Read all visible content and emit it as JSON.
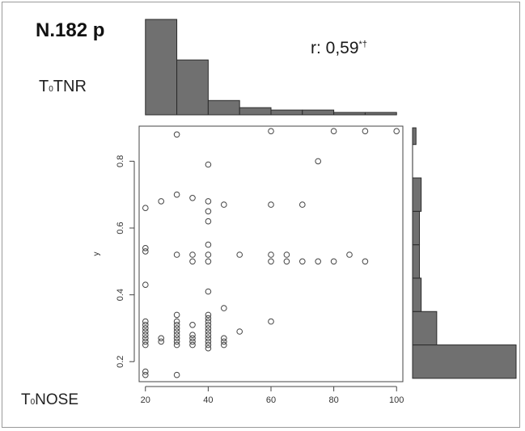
{
  "header": {
    "title": "N.182 p",
    "corr_main": "r: 0,59",
    "corr_sup": "*†",
    "label_top_prefix": "T",
    "label_top_sub": "0",
    "label_top_rest": "TNR",
    "label_bottom_prefix": "T",
    "label_bottom_sub": "0",
    "label_bottom_rest": "NOSE"
  },
  "colors": {
    "bar_fill": "#707070",
    "bar_stroke": "#2a2a2a",
    "point_stroke": "#444444",
    "axis": "#444444"
  },
  "chart_data": {
    "type": "scatter",
    "xlabel": "",
    "ylabel": "y",
    "xlim": [
      18,
      102
    ],
    "ylim": [
      0.14,
      0.905
    ],
    "x_ticks": [
      20,
      40,
      60,
      80,
      100
    ],
    "y_ticks": [
      0.2,
      0.4,
      0.6,
      0.8
    ],
    "y_tick_labels": [
      "0.2",
      "0.4",
      "0.6",
      "0.8"
    ],
    "grid": false,
    "points": [
      [
        20,
        0.17
      ],
      [
        20,
        0.16
      ],
      [
        20,
        0.25
      ],
      [
        20,
        0.26
      ],
      [
        20,
        0.27
      ],
      [
        20,
        0.28
      ],
      [
        20,
        0.29
      ],
      [
        20,
        0.3
      ],
      [
        20,
        0.31
      ],
      [
        20,
        0.32
      ],
      [
        20,
        0.43
      ],
      [
        20,
        0.53
      ],
      [
        20,
        0.54
      ],
      [
        20,
        0.66
      ],
      [
        25,
        0.26
      ],
      [
        25,
        0.27
      ],
      [
        25,
        0.68
      ],
      [
        30,
        0.16
      ],
      [
        30,
        0.25
      ],
      [
        30,
        0.26
      ],
      [
        30,
        0.27
      ],
      [
        30,
        0.28
      ],
      [
        30,
        0.29
      ],
      [
        30,
        0.3
      ],
      [
        30,
        0.31
      ],
      [
        30,
        0.32
      ],
      [
        30,
        0.34
      ],
      [
        30,
        0.52
      ],
      [
        30,
        0.7
      ],
      [
        30,
        0.88
      ],
      [
        35,
        0.25
      ],
      [
        35,
        0.26
      ],
      [
        35,
        0.27
      ],
      [
        35,
        0.28
      ],
      [
        35,
        0.31
      ],
      [
        35,
        0.5
      ],
      [
        35,
        0.52
      ],
      [
        35,
        0.69
      ],
      [
        40,
        0.24
      ],
      [
        40,
        0.25
      ],
      [
        40,
        0.26
      ],
      [
        40,
        0.27
      ],
      [
        40,
        0.28
      ],
      [
        40,
        0.29
      ],
      [
        40,
        0.3
      ],
      [
        40,
        0.31
      ],
      [
        40,
        0.32
      ],
      [
        40,
        0.33
      ],
      [
        40,
        0.34
      ],
      [
        40,
        0.41
      ],
      [
        40,
        0.5
      ],
      [
        40,
        0.52
      ],
      [
        40,
        0.55
      ],
      [
        40,
        0.62
      ],
      [
        40,
        0.65
      ],
      [
        40,
        0.68
      ],
      [
        40,
        0.79
      ],
      [
        45,
        0.25
      ],
      [
        45,
        0.26
      ],
      [
        45,
        0.27
      ],
      [
        45,
        0.36
      ],
      [
        45,
        0.67
      ],
      [
        50,
        0.29
      ],
      [
        50,
        0.52
      ],
      [
        60,
        0.32
      ],
      [
        60,
        0.5
      ],
      [
        60,
        0.52
      ],
      [
        60,
        0.67
      ],
      [
        60,
        0.89
      ],
      [
        65,
        0.5
      ],
      [
        65,
        0.52
      ],
      [
        70,
        0.5
      ],
      [
        70,
        0.67
      ],
      [
        75,
        0.5
      ],
      [
        75,
        0.8
      ],
      [
        80,
        0.5
      ],
      [
        80,
        0.89
      ],
      [
        85,
        0.52
      ],
      [
        90,
        0.5
      ],
      [
        90,
        0.89
      ],
      [
        100,
        0.89
      ]
    ],
    "x_histogram": {
      "bins": [
        20,
        30,
        40,
        50,
        60,
        70,
        80,
        90,
        100
      ],
      "counts": [
        40,
        23,
        6,
        3,
        2,
        2,
        1,
        1
      ]
    },
    "y_histogram": {
      "bins": [
        0.15,
        0.25,
        0.35,
        0.45,
        0.55,
        0.65,
        0.75,
        0.85,
        0.9
      ],
      "counts": [
        60,
        14,
        5,
        4,
        4,
        5,
        0,
        2
      ]
    }
  }
}
